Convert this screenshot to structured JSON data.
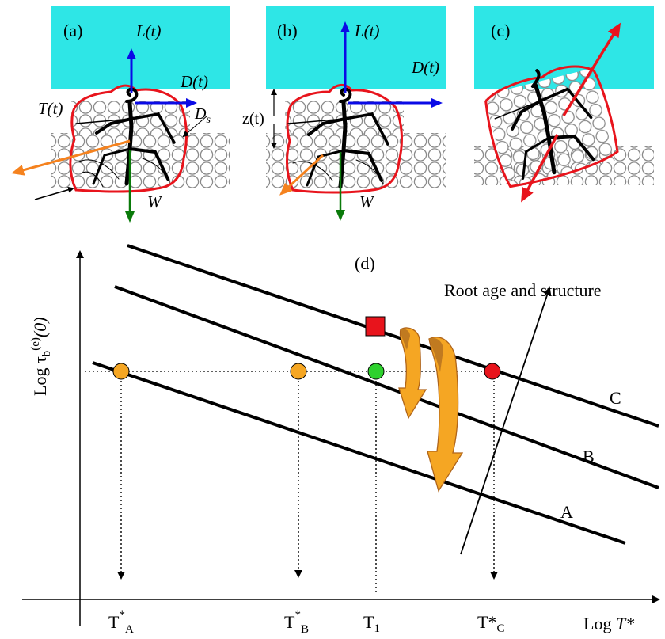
{
  "panels": {
    "a": {
      "tag": "(a)",
      "lift": "L(t)",
      "drag": "D(t)",
      "torque": "T(t)",
      "ds": "D",
      "ds_sub": "s",
      "weight": "W"
    },
    "b": {
      "tag": "(b)",
      "lift": "L(t)",
      "drag": "D(t)",
      "depth": "z(t)",
      "weight": "W"
    },
    "c": {
      "tag": "(c)"
    }
  },
  "graph": {
    "tag": "(d)",
    "ylabel": "Log τb(e)(0)",
    "ylabel_parts": {
      "pre": "Log τ",
      "sub": "b",
      "sup": "(e)",
      "post": "(0)"
    },
    "xlabel": "Log T*",
    "xlabel_parts": {
      "pre": "Log ",
      "italic": "T*"
    },
    "arrow_label": "Root age and structure",
    "lines": [
      "A",
      "B",
      "C"
    ],
    "ticks": {
      "TA": {
        "main": "T",
        "sup": "*",
        "sub": "A"
      },
      "TB": {
        "main": "T",
        "sup": "*",
        "sub": "B"
      },
      "T1": {
        "main": "T",
        "sub": "1"
      },
      "TC": {
        "main": "T*",
        "sub": "C"
      }
    }
  },
  "colors": {
    "water": "#2ee6e6",
    "root_outline": "#e8141c",
    "lift_arrow": "#0a0ae6",
    "weight_arrow": "#0a7a0a",
    "resist_arrow": "#f5821e",
    "marker_orange": "#f5a623",
    "marker_green": "#2ed12e",
    "marker_red": "#e8141c",
    "curved_arrow": "#f5a623"
  }
}
